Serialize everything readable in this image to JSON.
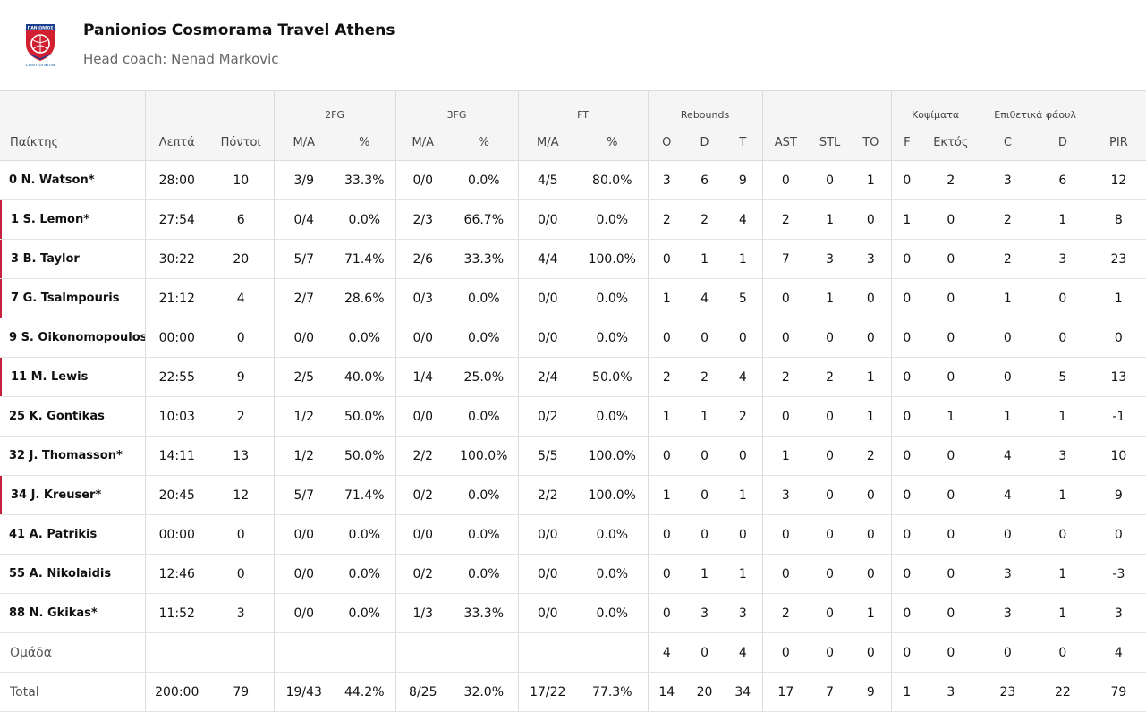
{
  "team": {
    "name": "Panionios Cosmorama Travel Athens",
    "coach": "Head coach: Nenad Markovic",
    "logo_text": "ΠΑΝΙΩΝΙΟΣ",
    "logo_sponsor": "cosmorama"
  },
  "colors": {
    "accent": "#c6213f",
    "logo_red": "#d32030",
    "logo_blue": "#1d3f8f",
    "header_bg": "#f5f5f5"
  },
  "groups": {
    "fg2": "2FG",
    "fg3": "3FG",
    "ft": "FT",
    "reb": "Rebounds",
    "blk": "Κοψίματα",
    "fouls": "Επιθετικά φάουλ"
  },
  "columns": {
    "player": "Παίκτης",
    "min": "Λεπτά",
    "pts": "Πόντοι",
    "fg2_ma": "M/A",
    "fg2_pct": "%",
    "fg3_ma": "M/A",
    "fg3_pct": "%",
    "ft_ma": "M/A",
    "ft_pct": "%",
    "reb_o": "O",
    "reb_d": "D",
    "reb_t": "T",
    "ast": "AST",
    "stl": "STL",
    "to": "TO",
    "blk_f": "F",
    "blk_a": "Εκτός",
    "foul_c": "C",
    "foul_d": "D",
    "pir": "PIR"
  },
  "players": [
    {
      "name": "0 N. Watson*",
      "mark": false,
      "min": "28:00",
      "pts": "10",
      "fg2": "3/9",
      "fg2p": "33.3%",
      "fg3": "0/0",
      "fg3p": "0.0%",
      "ft": "4/5",
      "ftp": "80.0%",
      "o": "3",
      "d": "6",
      "t": "9",
      "ast": "0",
      "stl": "0",
      "to": "1",
      "bf": "0",
      "ba": "2",
      "fc": "3",
      "fd": "6",
      "pir": "12"
    },
    {
      "name": "1 S. Lemon*",
      "mark": true,
      "min": "27:54",
      "pts": "6",
      "fg2": "0/4",
      "fg2p": "0.0%",
      "fg3": "2/3",
      "fg3p": "66.7%",
      "ft": "0/0",
      "ftp": "0.0%",
      "o": "2",
      "d": "2",
      "t": "4",
      "ast": "2",
      "stl": "1",
      "to": "0",
      "bf": "1",
      "ba": "0",
      "fc": "2",
      "fd": "1",
      "pir": "8"
    },
    {
      "name": "3 B. Taylor",
      "mark": true,
      "min": "30:22",
      "pts": "20",
      "fg2": "5/7",
      "fg2p": "71.4%",
      "fg3": "2/6",
      "fg3p": "33.3%",
      "ft": "4/4",
      "ftp": "100.0%",
      "o": "0",
      "d": "1",
      "t": "1",
      "ast": "7",
      "stl": "3",
      "to": "3",
      "bf": "0",
      "ba": "0",
      "fc": "2",
      "fd": "3",
      "pir": "23"
    },
    {
      "name": "7 G. Tsalmpouris",
      "mark": true,
      "min": "21:12",
      "pts": "4",
      "fg2": "2/7",
      "fg2p": "28.6%",
      "fg3": "0/3",
      "fg3p": "0.0%",
      "ft": "0/0",
      "ftp": "0.0%",
      "o": "1",
      "d": "4",
      "t": "5",
      "ast": "0",
      "stl": "1",
      "to": "0",
      "bf": "0",
      "ba": "0",
      "fc": "1",
      "fd": "0",
      "pir": "1"
    },
    {
      "name": "9 S. Oikonomopoulos",
      "mark": false,
      "min": "00:00",
      "pts": "0",
      "fg2": "0/0",
      "fg2p": "0.0%",
      "fg3": "0/0",
      "fg3p": "0.0%",
      "ft": "0/0",
      "ftp": "0.0%",
      "o": "0",
      "d": "0",
      "t": "0",
      "ast": "0",
      "stl": "0",
      "to": "0",
      "bf": "0",
      "ba": "0",
      "fc": "0",
      "fd": "0",
      "pir": "0"
    },
    {
      "name": "11 M. Lewis",
      "mark": true,
      "min": "22:55",
      "pts": "9",
      "fg2": "2/5",
      "fg2p": "40.0%",
      "fg3": "1/4",
      "fg3p": "25.0%",
      "ft": "2/4",
      "ftp": "50.0%",
      "o": "2",
      "d": "2",
      "t": "4",
      "ast": "2",
      "stl": "2",
      "to": "1",
      "bf": "0",
      "ba": "0",
      "fc": "0",
      "fd": "5",
      "pir": "13"
    },
    {
      "name": "25 K. Gontikas",
      "mark": false,
      "min": "10:03",
      "pts": "2",
      "fg2": "1/2",
      "fg2p": "50.0%",
      "fg3": "0/0",
      "fg3p": "0.0%",
      "ft": "0/2",
      "ftp": "0.0%",
      "o": "1",
      "d": "1",
      "t": "2",
      "ast": "0",
      "stl": "0",
      "to": "1",
      "bf": "0",
      "ba": "1",
      "fc": "1",
      "fd": "1",
      "pir": "-1"
    },
    {
      "name": "32 J. Thomasson*",
      "mark": false,
      "min": "14:11",
      "pts": "13",
      "fg2": "1/2",
      "fg2p": "50.0%",
      "fg3": "2/2",
      "fg3p": "100.0%",
      "ft": "5/5",
      "ftp": "100.0%",
      "o": "0",
      "d": "0",
      "t": "0",
      "ast": "1",
      "stl": "0",
      "to": "2",
      "bf": "0",
      "ba": "0",
      "fc": "4",
      "fd": "3",
      "pir": "10"
    },
    {
      "name": "34 J. Kreuser*",
      "mark": true,
      "min": "20:45",
      "pts": "12",
      "fg2": "5/7",
      "fg2p": "71.4%",
      "fg3": "0/2",
      "fg3p": "0.0%",
      "ft": "2/2",
      "ftp": "100.0%",
      "o": "1",
      "d": "0",
      "t": "1",
      "ast": "3",
      "stl": "0",
      "to": "0",
      "bf": "0",
      "ba": "0",
      "fc": "4",
      "fd": "1",
      "pir": "9"
    },
    {
      "name": "41 A. Patrikis",
      "mark": false,
      "min": "00:00",
      "pts": "0",
      "fg2": "0/0",
      "fg2p": "0.0%",
      "fg3": "0/0",
      "fg3p": "0.0%",
      "ft": "0/0",
      "ftp": "0.0%",
      "o": "0",
      "d": "0",
      "t": "0",
      "ast": "0",
      "stl": "0",
      "to": "0",
      "bf": "0",
      "ba": "0",
      "fc": "0",
      "fd": "0",
      "pir": "0"
    },
    {
      "name": "55 A. Nikolaidis",
      "mark": false,
      "min": "12:46",
      "pts": "0",
      "fg2": "0/0",
      "fg2p": "0.0%",
      "fg3": "0/2",
      "fg3p": "0.0%",
      "ft": "0/0",
      "ftp": "0.0%",
      "o": "0",
      "d": "1",
      "t": "1",
      "ast": "0",
      "stl": "0",
      "to": "0",
      "bf": "0",
      "ba": "0",
      "fc": "3",
      "fd": "1",
      "pir": "-3"
    },
    {
      "name": "88 N. Gkikas*",
      "mark": false,
      "min": "11:52",
      "pts": "3",
      "fg2": "0/0",
      "fg2p": "0.0%",
      "fg3": "1/3",
      "fg3p": "33.3%",
      "ft": "0/0",
      "ftp": "0.0%",
      "o": "0",
      "d": "3",
      "t": "3",
      "ast": "2",
      "stl": "0",
      "to": "1",
      "bf": "0",
      "ba": "0",
      "fc": "3",
      "fd": "1",
      "pir": "3"
    }
  ],
  "team_row": {
    "name": "Ομάδα",
    "min": "",
    "pts": "",
    "fg2": "",
    "fg2p": "",
    "fg3": "",
    "fg3p": "",
    "ft": "",
    "ftp": "",
    "o": "4",
    "d": "0",
    "t": "4",
    "ast": "0",
    "stl": "0",
    "to": "0",
    "bf": "0",
    "ba": "0",
    "fc": "0",
    "fd": "0",
    "pir": "4"
  },
  "total_row": {
    "name": "Total",
    "min": "200:00",
    "pts": "79",
    "fg2": "19/43",
    "fg2p": "44.2%",
    "fg3": "8/25",
    "fg3p": "32.0%",
    "ft": "17/22",
    "ftp": "77.3%",
    "o": "14",
    "d": "20",
    "t": "34",
    "ast": "17",
    "stl": "7",
    "to": "9",
    "bf": "1",
    "ba": "3",
    "fc": "23",
    "fd": "22",
    "pir": "79"
  }
}
